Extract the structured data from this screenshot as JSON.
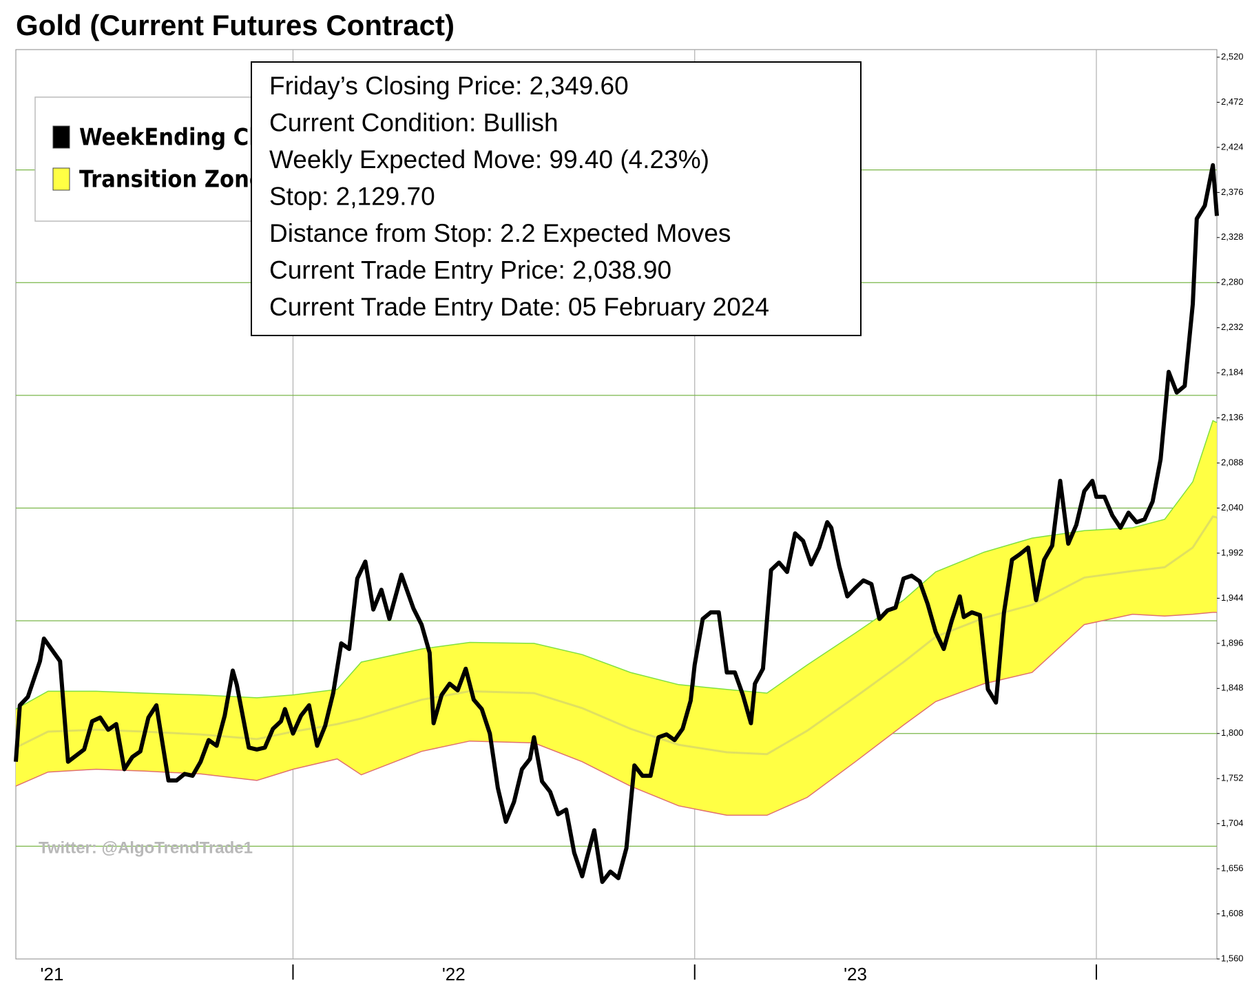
{
  "chart_data": {
    "type": "line",
    "title": "Gold (Current Futures Contract)",
    "annotations": [
      "Friday’s Closing Price: 2,349.60",
      "Current Condition: Bullish",
      "Weekly Expected Move: 99.40 (4.23%)",
      "Stop: 2,129.70",
      "Distance from Stop: 2.2 Expected Moves",
      "Current Trade Entry Price: 2,038.90",
      "Current Trade Entry Date: 05 February 2024"
    ],
    "watermark": "Twitter: @AlgoTrendTrade1",
    "xlim": [
      2021.31,
      2024.3
    ],
    "xticks": [
      2022,
      2023,
      2024
    ],
    "xlabels": [
      {
        "value": 2021.4,
        "label": "'21"
      },
      {
        "value": 2022.4,
        "label": "'22"
      },
      {
        "value": 2023.4,
        "label": "'23"
      }
    ],
    "ylim": [
      1560,
      2520
    ],
    "yticks": [
      {
        "value": 1560,
        "label": "1,560"
      },
      {
        "value": 1608,
        "label": "1,608"
      },
      {
        "value": 1656,
        "label": "1,656"
      },
      {
        "value": 1704,
        "label": "1,704"
      },
      {
        "value": 1752,
        "label": "1,752"
      },
      {
        "value": 1800,
        "label": "1,800"
      },
      {
        "value": 1848,
        "label": "1,848"
      },
      {
        "value": 1896,
        "label": "1,896"
      },
      {
        "value": 1944,
        "label": "1,944"
      },
      {
        "value": 1992,
        "label": "1,992"
      },
      {
        "value": 2040,
        "label": "2,040"
      },
      {
        "value": 2088,
        "label": "2,088"
      },
      {
        "value": 2136,
        "label": "2,136"
      },
      {
        "value": 2184,
        "label": "2,184"
      },
      {
        "value": 2232,
        "label": "2,232"
      },
      {
        "value": 2280,
        "label": "2,280"
      },
      {
        "value": 2328,
        "label": "2,328"
      },
      {
        "value": 2376,
        "label": "2,376"
      },
      {
        "value": 2424,
        "label": "2,424"
      },
      {
        "value": 2472,
        "label": "2,472"
      },
      {
        "value": 2520,
        "label": "2,520"
      }
    ],
    "ygrid": [
      1680,
      1800,
      1920,
      2040,
      2160,
      2280,
      2400
    ],
    "grid": true,
    "grid_color": "#7ab648",
    "xgrid_color": "#b0b0b0",
    "legend": "top-left",
    "series": [
      {
        "name": "WeekEnding Close",
        "color": "#000000",
        "x": [
          2021.31,
          2021.32,
          2021.34,
          2021.37,
          2021.38,
          2021.42,
          2021.44,
          2021.48,
          2021.5,
          2021.52,
          2021.54,
          2021.56,
          2021.58,
          2021.6,
          2021.62,
          2021.64,
          2021.66,
          2021.69,
          2021.71,
          2021.73,
          2021.75,
          2021.77,
          2021.79,
          2021.81,
          2021.83,
          2021.85,
          2021.86,
          2021.89,
          2021.91,
          2021.93,
          2021.95,
          2021.97,
          2021.98,
          2022.0,
          2022.02,
          2022.04,
          2022.06,
          2022.08,
          2022.1,
          2022.12,
          2022.14,
          2022.16,
          2022.18,
          2022.2,
          2022.22,
          2022.24,
          2022.27,
          2022.3,
          2022.32,
          2022.34,
          2022.35,
          2022.37,
          2022.39,
          2022.41,
          2022.43,
          2022.45,
          2022.47,
          2022.49,
          2022.51,
          2022.53,
          2022.55,
          2022.57,
          2022.59,
          2022.6,
          2022.62,
          2022.64,
          2022.66,
          2022.68,
          2022.7,
          2022.72,
          2022.73,
          2022.75,
          2022.77,
          2022.79,
          2022.81,
          2022.83,
          2022.85,
          2022.87,
          2022.89,
          2022.91,
          2022.93,
          2022.95,
          2022.97,
          2022.99,
          2023.0,
          2023.02,
          2023.04,
          2023.06,
          2023.08,
          2023.1,
          2023.12,
          2023.14,
          2023.15,
          2023.17,
          2023.19,
          2023.21,
          2023.23,
          2023.25,
          2023.27,
          2023.29,
          2023.31,
          2023.33,
          2023.34,
          2023.36,
          2023.38,
          2023.4,
          2023.42,
          2023.44,
          2023.46,
          2023.48,
          2023.5,
          2023.52,
          2023.54,
          2023.56,
          2023.58,
          2023.6,
          2023.62,
          2023.64,
          2023.66,
          2023.67,
          2023.69,
          2023.71,
          2023.73,
          2023.75,
          2023.77,
          2023.79,
          2023.81,
          2023.83,
          2023.85,
          2023.87,
          2023.89,
          2023.91,
          2023.93,
          2023.95,
          2023.97,
          2023.99,
          2024.0,
          2024.02,
          2024.04,
          2024.06,
          2024.08,
          2024.1,
          2024.12,
          2024.14,
          2024.16,
          2024.18,
          2024.2,
          2024.22,
          2024.24,
          2024.25,
          2024.27,
          2024.29,
          2024.3
        ],
        "values": [
          1770,
          1830,
          1839,
          1877,
          1901,
          1877,
          1770,
          1783,
          1813,
          1817,
          1804,
          1810,
          1762,
          1775,
          1781,
          1817,
          1830,
          1750,
          1750,
          1757,
          1755,
          1770,
          1793,
          1787,
          1819,
          1867,
          1852,
          1785,
          1783,
          1785,
          1805,
          1813,
          1826,
          1800,
          1819,
          1830,
          1787,
          1808,
          1843,
          1896,
          1890,
          1965,
          1983,
          1932,
          1953,
          1922,
          1969,
          1933,
          1916,
          1886,
          1811,
          1841,
          1853,
          1846,
          1869,
          1836,
          1826,
          1800,
          1742,
          1706,
          1727,
          1762,
          1773,
          1796,
          1749,
          1738,
          1714,
          1719,
          1673,
          1648,
          1665,
          1697,
          1642,
          1653,
          1646,
          1678,
          1766,
          1755,
          1755,
          1796,
          1799,
          1793,
          1805,
          1835,
          1873,
          1922,
          1929,
          1929,
          1865,
          1865,
          1841,
          1811,
          1853,
          1869,
          1974,
          1982,
          1972,
          2013,
          2005,
          1980,
          1998,
          2025,
          2019,
          1978,
          1946,
          1955,
          1963,
          1959,
          1922,
          1931,
          1934,
          1965,
          1968,
          1962,
          1938,
          1908,
          1890,
          1920,
          1946,
          1924,
          1929,
          1926,
          1847,
          1833,
          1929,
          1985,
          1991,
          1998,
          1942,
          1985,
          2000,
          2069,
          2002,
          2022,
          2058,
          2069,
          2052,
          2052,
          2032,
          2019,
          2035,
          2025,
          2028,
          2047,
          2092,
          2185,
          2163,
          2170,
          2257,
          2348,
          2362,
          2405,
          2351
        ]
      },
      {
        "name": "Transition Zone",
        "color": "#ffff44",
        "upper_color": "#7fe040",
        "lower_color": "#e07070",
        "mid_color": "#e0e060",
        "x": [
          2021.31,
          2021.39,
          2021.51,
          2021.63,
          2021.77,
          2021.91,
          2022.0,
          2022.11,
          2022.17,
          2022.32,
          2022.44,
          2022.6,
          2022.72,
          2022.84,
          2022.96,
          2023.08,
          2023.18,
          2023.28,
          2023.4,
          2023.52,
          2023.6,
          2023.72,
          2023.84,
          2023.97,
          2024.09,
          2024.17,
          2024.24,
          2024.29,
          2024.3
        ],
        "upper": [
          1826,
          1845,
          1845,
          1843,
          1841,
          1838,
          1841,
          1847,
          1876,
          1890,
          1897,
          1896,
          1884,
          1865,
          1852,
          1847,
          1843,
          1873,
          1907,
          1942,
          1972,
          1993,
          2008,
          2016,
          2019,
          2028,
          2068,
          2133,
          2131
        ],
        "values": [
          1785,
          1802,
          1804,
          1802,
          1799,
          1794,
          1802,
          1810,
          1816,
          1836,
          1845,
          1843,
          1827,
          1805,
          1788,
          1780,
          1778,
          1803,
          1839,
          1876,
          1903,
          1923,
          1937,
          1966,
          1973,
          1977,
          1998,
          2031,
          2030
        ],
        "lower": [
          1744,
          1759,
          1762,
          1760,
          1757,
          1750,
          1762,
          1773,
          1756,
          1781,
          1792,
          1790,
          1770,
          1744,
          1723,
          1713,
          1713,
          1732,
          1770,
          1809,
          1834,
          1853,
          1865,
          1916,
          1927,
          1925,
          1927,
          1929,
          1929
        ]
      }
    ]
  }
}
